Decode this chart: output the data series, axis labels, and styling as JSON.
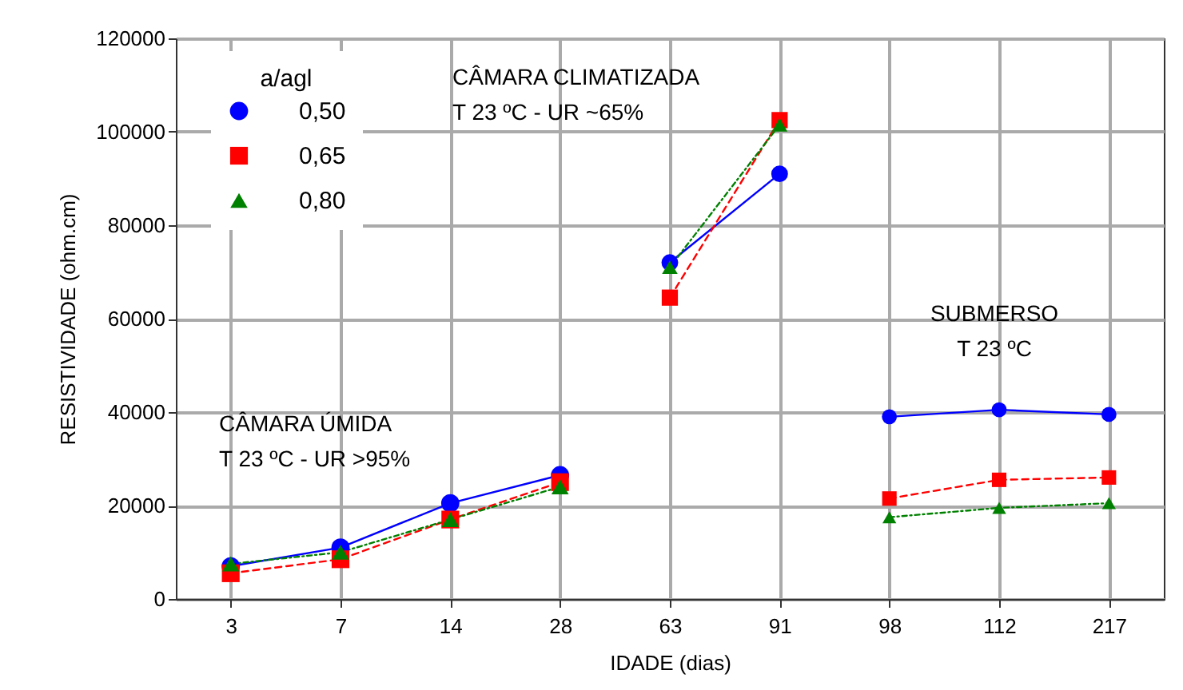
{
  "chart_data": {
    "type": "line",
    "xlabel": "IDADE (dias)",
    "ylabel": "RESISTIVIDADE (ohm.cm)",
    "legend_title": "a/agl",
    "categories": [
      "3",
      "7",
      "14",
      "28",
      "63",
      "91",
      "98",
      "112",
      "217"
    ],
    "ylim": [
      0,
      120000
    ],
    "yticks": [
      0,
      20000,
      40000,
      60000,
      80000,
      100000,
      120000
    ],
    "grid": true,
    "legend": "top left",
    "series": [
      {
        "name": "0,50",
        "color": "#0000ff",
        "marker": "circle",
        "line_style": "solid",
        "values": [
          7000,
          11000,
          20500,
          26500,
          null,
          null,
          null,
          null,
          null
        ]
      },
      {
        "name": "0,65",
        "color": "#ff0000",
        "marker": "square",
        "line_style": "dashed",
        "values": [
          5500,
          8500,
          17000,
          25000,
          null,
          null,
          null,
          null,
          null
        ]
      },
      {
        "name": "0,80",
        "color": "#008000",
        "marker": "triangle",
        "line_style": "dotted",
        "values": [
          7500,
          10000,
          17000,
          24000,
          null,
          null,
          null,
          null,
          null
        ]
      },
      {
        "color": "#0000ff",
        "marker": "circle",
        "line_style": "solid",
        "values": [
          null,
          null,
          null,
          null,
          72000,
          91000,
          null,
          null,
          null
        ]
      },
      {
        "color": "#ff0000",
        "marker": "square",
        "line_style": "dashed",
        "values": [
          null,
          null,
          null,
          null,
          64500,
          102500,
          null,
          null,
          null
        ]
      },
      {
        "color": "#008000",
        "marker": "triangle",
        "line_style": "dotted",
        "values": [
          null,
          null,
          null,
          null,
          71000,
          101500,
          null,
          null,
          null
        ]
      },
      {
        "color": "#0000ff",
        "marker": "circle",
        "line_style": "solid",
        "values": [
          null,
          null,
          null,
          null,
          null,
          null,
          39000,
          40500,
          39500
        ]
      },
      {
        "color": "#ff0000",
        "marker": "square",
        "line_style": "dashed",
        "values": [
          null,
          null,
          null,
          null,
          null,
          null,
          21500,
          25500,
          26000
        ]
      },
      {
        "color": "#008000",
        "marker": "triangle",
        "line_style": "dotted",
        "values": [
          null,
          null,
          null,
          null,
          null,
          null,
          17500,
          19500,
          20500
        ]
      }
    ],
    "annotations": [
      "CÂMARA CLIMATIZADA\nT 23 ºC - UR ~65%",
      "CÂMARA ÚMIDA\nT 23 ºC - UR >95%",
      "SUBMERSO\nT 23 ºC"
    ]
  }
}
